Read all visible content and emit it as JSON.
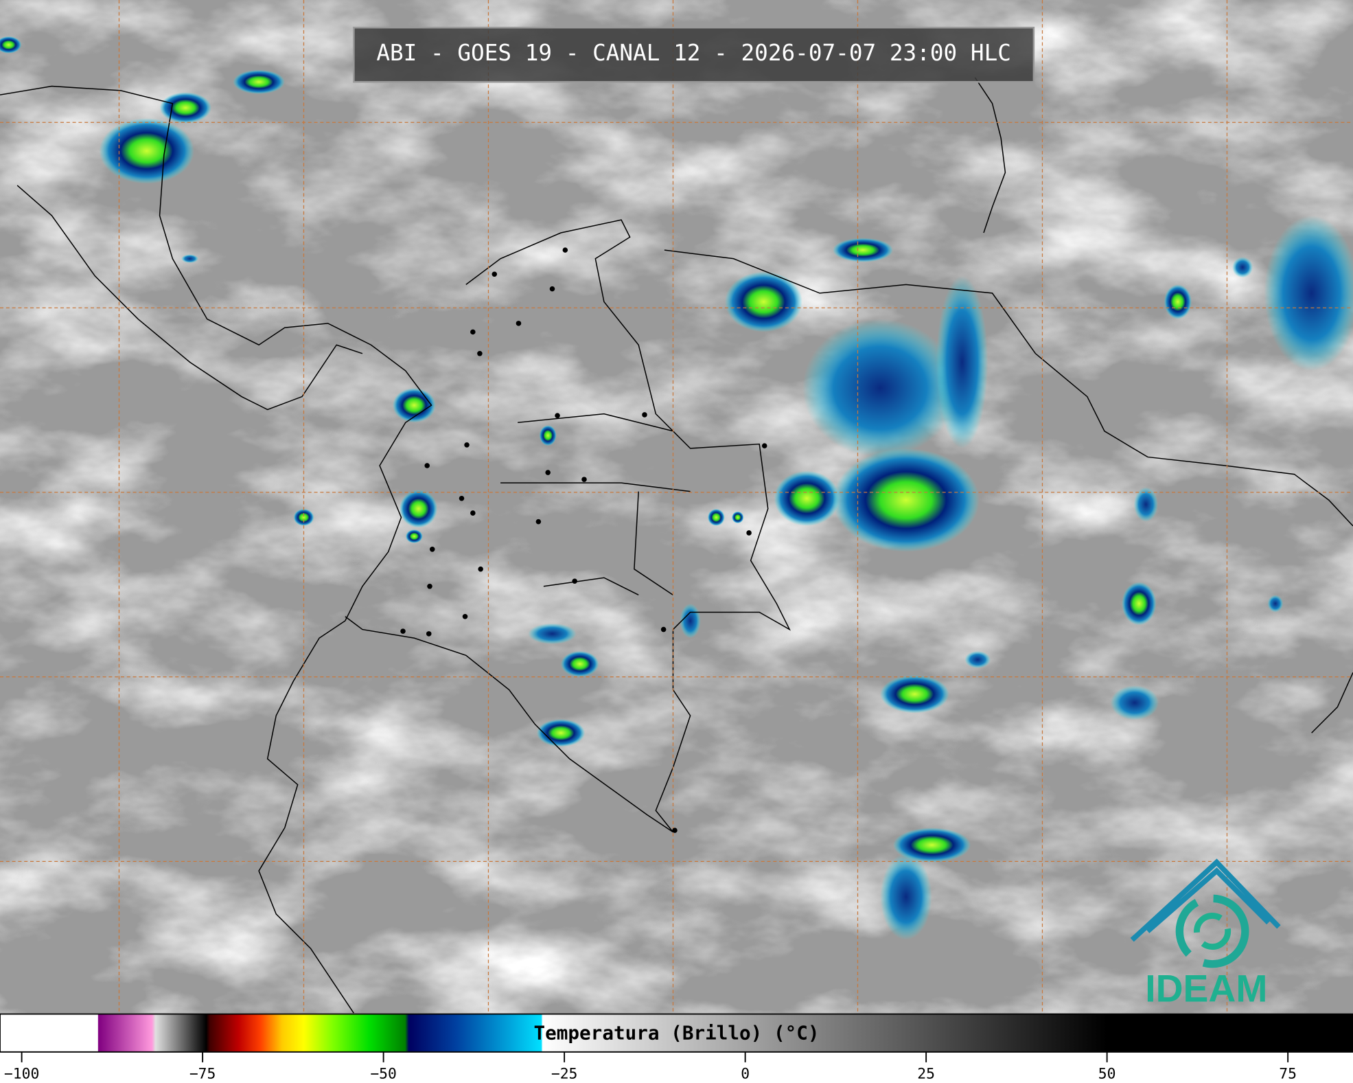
{
  "header": {
    "title": "ABI - GOES 19 - CANAL 12 - 2026-07-07 23:00 HLC"
  },
  "logo": {
    "text": "IDEAM"
  },
  "colorbar": {
    "label": "Temperatura (Brillo) (°C)",
    "lim": [
      -103,
      84
    ],
    "ticks": [
      {
        "value": -100,
        "label": "−100"
      },
      {
        "value": -75,
        "label": "−75"
      },
      {
        "value": -50,
        "label": "−50"
      },
      {
        "value": -25,
        "label": "−25"
      },
      0,
      25,
      50,
      75
    ],
    "stops": [
      {
        "value": -103,
        "color": "#ffffff"
      },
      {
        "value": -89.5,
        "color": "#ffffff"
      },
      {
        "value": -89.4,
        "color": "#800080"
      },
      {
        "value": -82,
        "color": "#ff99dd"
      },
      {
        "value": -81.5,
        "color": "#e0e0e0"
      },
      {
        "value": -74.5,
        "color": "#000000"
      },
      {
        "value": -74,
        "color": "#400000"
      },
      {
        "value": -70,
        "color": "#c00000"
      },
      {
        "value": -67,
        "color": "#ff4000"
      },
      {
        "value": -64,
        "color": "#ffcc00"
      },
      {
        "value": -61,
        "color": "#ffff00"
      },
      {
        "value": -57,
        "color": "#80ff00"
      },
      {
        "value": -52,
        "color": "#00e000"
      },
      {
        "value": -47,
        "color": "#008000"
      },
      {
        "value": -46.5,
        "color": "#000060"
      },
      {
        "value": -40,
        "color": "#0040a0"
      },
      {
        "value": -34,
        "color": "#0090d0"
      },
      {
        "value": -28.2,
        "color": "#00e0ff"
      },
      {
        "value": -28,
        "color": "#ffffff"
      },
      {
        "value": 50,
        "color": "#000000"
      },
      {
        "value": 84,
        "color": "#000000"
      }
    ]
  }
}
